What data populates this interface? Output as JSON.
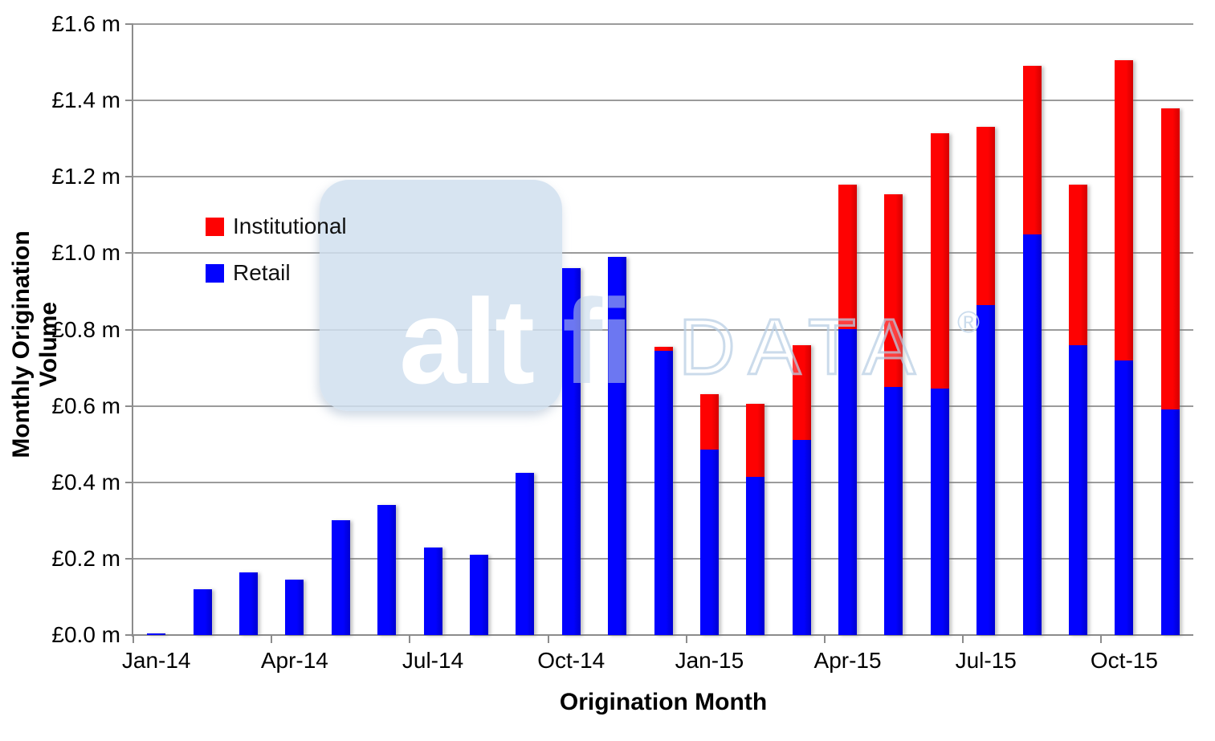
{
  "chart_data": {
    "type": "bar",
    "stacked": true,
    "title": "",
    "xlabel": "Origination Month",
    "ylabel": "Monthly Origination Volume",
    "units": "GBP millions",
    "ylim": [
      0,
      1.6
    ],
    "y_tick_step": 0.2,
    "grid": true,
    "y_tick_labels": [
      "£0.0 m",
      "£0.2 m",
      "£0.4 m",
      "£0.6 m",
      "£0.8 m",
      "£1.0 m",
      "£1.2 m",
      "£1.4 m",
      "£1.6 m"
    ],
    "categories": [
      "Jan-14",
      "Feb-14",
      "Mar-14",
      "Apr-14",
      "May-14",
      "Jun-14",
      "Jul-14",
      "Aug-14",
      "Sep-14",
      "Oct-14",
      "Nov-14",
      "Dec-14",
      "Jan-15",
      "Feb-15",
      "Mar-15",
      "Apr-15",
      "May-15",
      "Jun-15",
      "Jul-15",
      "Aug-15",
      "Sep-15",
      "Oct-15",
      "Nov-15"
    ],
    "x_axis_labels_visible": [
      "Jan-14",
      "Apr-14",
      "Jul-14",
      "Oct-14",
      "Jan-15",
      "Apr-15",
      "Jul-15",
      "Oct-15"
    ],
    "x_label_every_n": 3,
    "legend_position": "upper-left-inside",
    "series": [
      {
        "name": "Retail",
        "color": "#0202fe",
        "values": [
          0.005,
          0.12,
          0.165,
          0.145,
          0.3,
          0.34,
          0.23,
          0.21,
          0.425,
          0.96,
          0.99,
          0.745,
          0.485,
          0.415,
          0.51,
          0.8,
          0.65,
          0.645,
          0.865,
          1.05,
          0.76,
          0.72,
          0.59
        ]
      },
      {
        "name": "Institutional",
        "color": "#fe0202",
        "values": [
          0,
          0,
          0,
          0,
          0,
          0,
          0,
          0,
          0,
          0,
          0,
          0.01,
          0.145,
          0.19,
          0.25,
          0.38,
          0.505,
          0.67,
          0.465,
          0.44,
          0.42,
          0.785,
          0.79
        ]
      }
    ]
  },
  "axis_titles": {
    "y": "Monthly Origination Volume",
    "x": "Origination Month"
  },
  "legend": {
    "entries": [
      {
        "label": "Institutional",
        "color": "#fe0202"
      },
      {
        "label": "Retail",
        "color": "#0202fe"
      }
    ]
  },
  "watermark": {
    "brand_primary": "alt",
    "brand_secondary": "fi",
    "brand_suffix": "DATA",
    "registered_symbol": "®"
  },
  "colors": {
    "retail": "#0202fe",
    "retail_dark": "#0000d0",
    "institutional": "#fe0202",
    "institutional_dark": "#d40000",
    "gridline": "#9b9b9b",
    "axis": "#8c8c8c",
    "watermark_square": "#d0dfef",
    "watermark_text": "#c3d7ea"
  }
}
